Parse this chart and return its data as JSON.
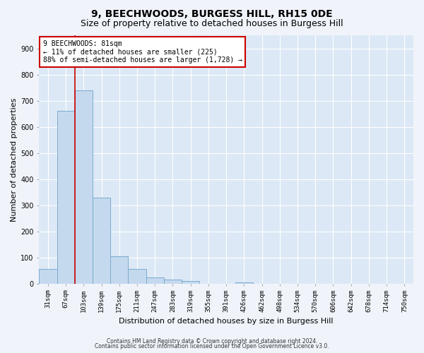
{
  "title1": "9, BEECHWOODS, BURGESS HILL, RH15 0DE",
  "title2": "Size of property relative to detached houses in Burgess Hill",
  "xlabel": "Distribution of detached houses by size in Burgess Hill",
  "ylabel": "Number of detached properties",
  "bar_labels": [
    "31sqm",
    "67sqm",
    "103sqm",
    "139sqm",
    "175sqm",
    "211sqm",
    "247sqm",
    "283sqm",
    "319sqm",
    "355sqm",
    "391sqm",
    "426sqm",
    "462sqm",
    "498sqm",
    "534sqm",
    "570sqm",
    "606sqm",
    "642sqm",
    "678sqm",
    "714sqm",
    "750sqm"
  ],
  "bar_values": [
    55,
    660,
    740,
    330,
    105,
    55,
    25,
    15,
    10,
    0,
    0,
    5,
    0,
    0,
    0,
    0,
    0,
    0,
    0,
    0,
    0
  ],
  "bar_color": "#c5d9ee",
  "bar_edge_color": "#7aacce",
  "vline_color": "#cc0000",
  "vline_x": 1.5,
  "annotation_text": "9 BEECHWOODS: 81sqm\n← 11% of detached houses are smaller (225)\n88% of semi-detached houses are larger (1,728) →",
  "annotation_box_color": "#ffffff",
  "annotation_box_edge": "#cc0000",
  "ylim": [
    0,
    950
  ],
  "yticks": [
    0,
    100,
    200,
    300,
    400,
    500,
    600,
    700,
    800,
    900
  ],
  "footer1": "Contains HM Land Registry data © Crown copyright and database right 2024.",
  "footer2": "Contains public sector information licensed under the Open Government Licence v3.0.",
  "fig_bg_color": "#f0f4fa",
  "plot_bg_color": "#dce8f5",
  "title1_fontsize": 10,
  "title2_fontsize": 9,
  "tick_fontsize": 6.5,
  "ylabel_fontsize": 8,
  "xlabel_fontsize": 8,
  "footer_fontsize": 5.5
}
